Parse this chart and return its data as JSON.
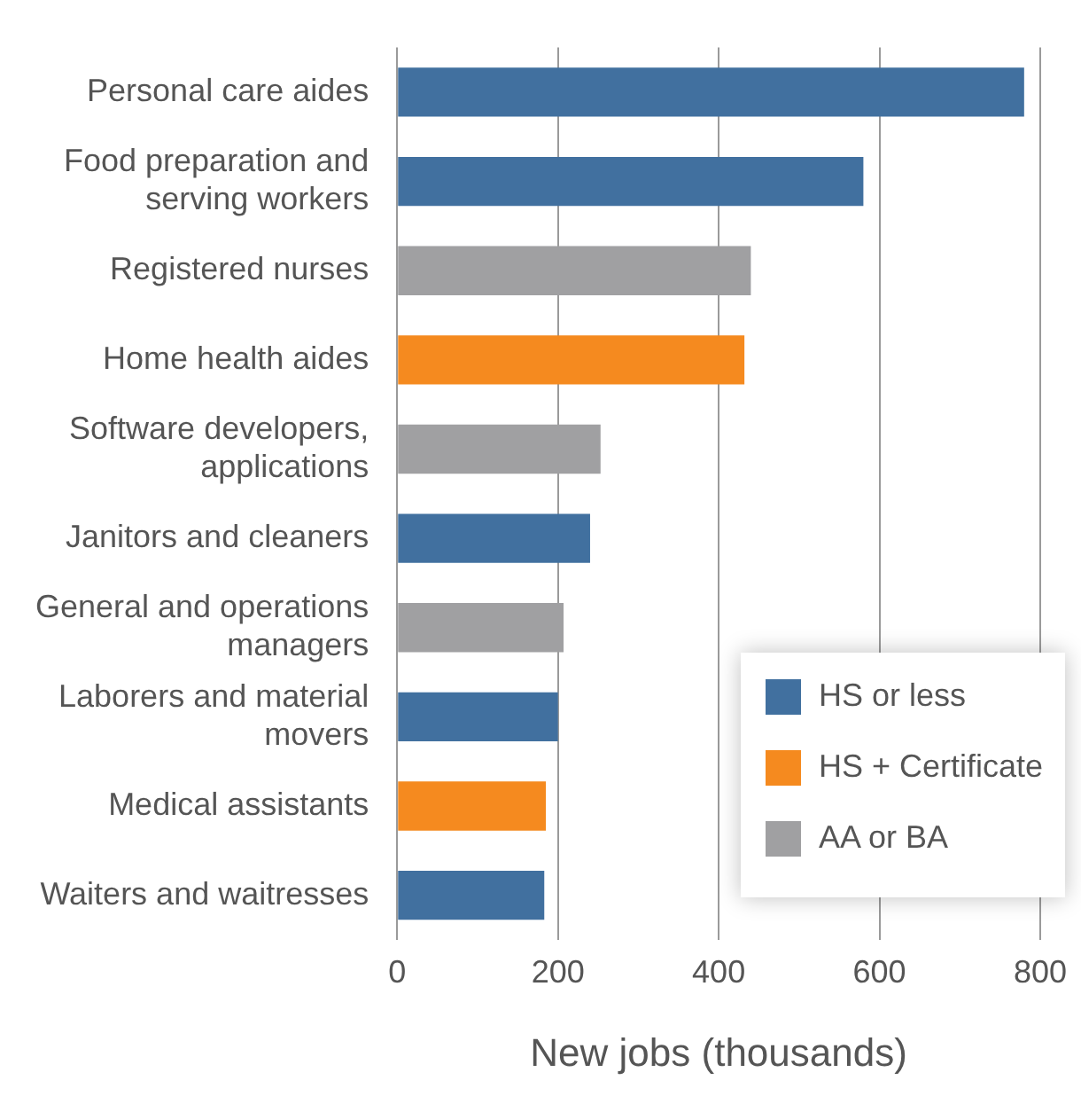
{
  "chart_data": {
    "type": "bar",
    "orientation": "horizontal",
    "xlabel": "New jobs (thousands)",
    "categories": [
      "Personal care aides",
      "Food preparation and serving workers",
      "Registered nurses",
      "Home health aides",
      "Software developers, applications",
      "Janitors and cleaners",
      "General and operations managers",
      "Laborers and material movers",
      "Medical assistants",
      "Waiters and waitresses"
    ],
    "series": [
      {
        "name": "HS or less",
        "color": "#41709f",
        "values": [
          780,
          580,
          null,
          null,
          null,
          240,
          null,
          200,
          null,
          183
        ]
      },
      {
        "name": "HS + Certificate",
        "color": "#f58a1f",
        "values": [
          null,
          null,
          null,
          432,
          null,
          null,
          null,
          null,
          185,
          null
        ]
      },
      {
        "name": "AA or BA",
        "color": "#a0a0a2",
        "values": [
          null,
          null,
          440,
          null,
          253,
          null,
          207,
          null,
          null,
          null
        ]
      }
    ],
    "xlim": [
      0,
      800
    ],
    "xticks": [
      0,
      200,
      400,
      600,
      800
    ],
    "grid": "x",
    "legend": "bottom right"
  }
}
